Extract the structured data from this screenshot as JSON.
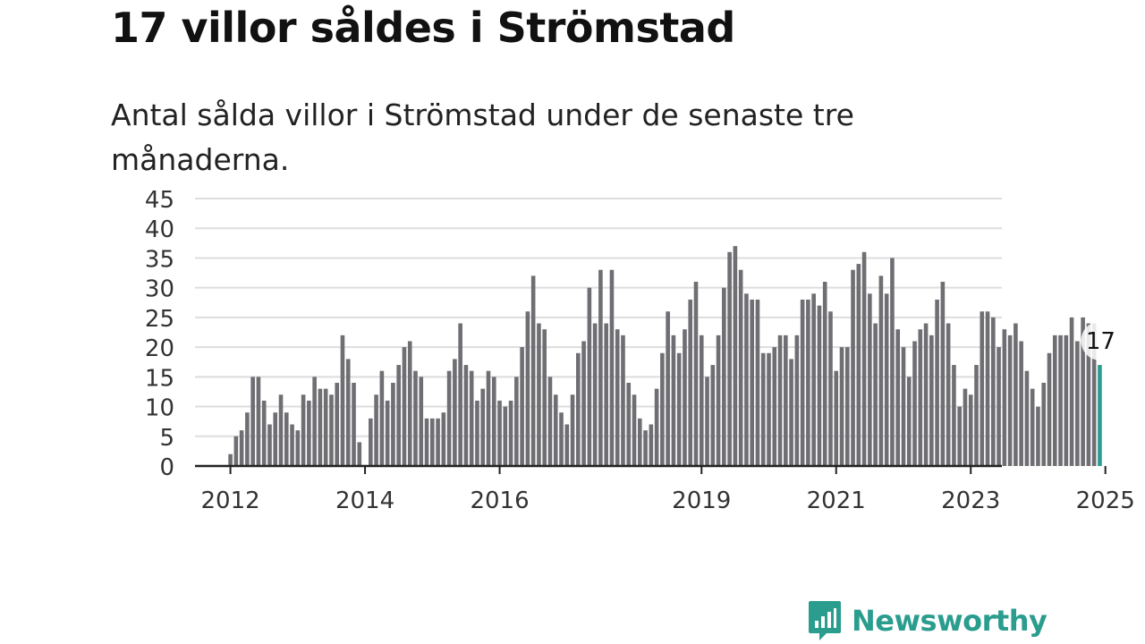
{
  "header": {
    "title": "17 villor såldes i Strömstad",
    "subtitle": "Antal sålda villor i Strömstad under de senaste tre månaderna."
  },
  "brand": {
    "name": "Newsworthy",
    "color": "#2a9d8f"
  },
  "colors": {
    "bar": "#6e6e73",
    "highlight": "#2a9d8f",
    "grid": "#dddddd",
    "axis": "#222222",
    "tick_text": "#333333"
  },
  "chart_data": {
    "type": "bar",
    "title": "",
    "xlabel": "",
    "ylabel": "",
    "ylim": [
      0,
      45
    ],
    "yticks": [
      0,
      5,
      10,
      15,
      20,
      25,
      30,
      35,
      40,
      45
    ],
    "grid": true,
    "start_month": "2011-09",
    "end_month": "2025-01",
    "xtick_labels": [
      "2012",
      "2014",
      "2016",
      "2019",
      "2021",
      "2023",
      "2025"
    ],
    "highlight_label": "17",
    "values": [
      0,
      0,
      0,
      0,
      2,
      5,
      6,
      9,
      15,
      15,
      11,
      7,
      9,
      12,
      9,
      7,
      6,
      12,
      11,
      15,
      13,
      13,
      12,
      14,
      22,
      18,
      14,
      4,
      0,
      8,
      12,
      16,
      11,
      14,
      17,
      20,
      21,
      16,
      15,
      8,
      8,
      8,
      9,
      16,
      18,
      24,
      17,
      16,
      11,
      13,
      16,
      15,
      11,
      10,
      11,
      15,
      20,
      26,
      32,
      24,
      23,
      15,
      12,
      9,
      7,
      12,
      19,
      21,
      30,
      24,
      33,
      24,
      33,
      23,
      22,
      14,
      12,
      8,
      6,
      7,
      13,
      19,
      26,
      22,
      19,
      23,
      28,
      31,
      22,
      15,
      17,
      22,
      30,
      36,
      37,
      33,
      29,
      28,
      28,
      19,
      19,
      20,
      22,
      22,
      18,
      22,
      28,
      28,
      29,
      27,
      31,
      26,
      16,
      20,
      20,
      33,
      34,
      36,
      29,
      24,
      32,
      29,
      35,
      23,
      20,
      15,
      21,
      23,
      24,
      22,
      28,
      31,
      24,
      17,
      10,
      13,
      12,
      17,
      26,
      26,
      25,
      20,
      23,
      22,
      24,
      21,
      16,
      13,
      10,
      14,
      19,
      22,
      22,
      22,
      25,
      21,
      25,
      24,
      24,
      17
    ]
  }
}
